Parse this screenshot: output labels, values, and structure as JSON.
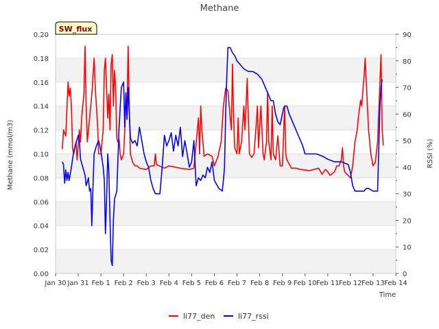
{
  "chart_data": {
    "type": "line",
    "title": "Methane",
    "site_label": "SW_flux",
    "xlabel": "Time",
    "ylabel": "Methane (mmol/m3)",
    "y2label": "RSSI (%)",
    "x_unit": "days since Jan 30",
    "xlim": [
      0,
      15
    ],
    "ylim": [
      0,
      0.2
    ],
    "y2lim": [
      0,
      90
    ],
    "x_ticks": [
      {
        "x": 0,
        "label": "Jan 30"
      },
      {
        "x": 1,
        "label": "Jan 31"
      },
      {
        "x": 2,
        "label": "Feb 1"
      },
      {
        "x": 3,
        "label": "Feb 2"
      },
      {
        "x": 4,
        "label": "Feb 3"
      },
      {
        "x": 5,
        "label": "Feb 4"
      },
      {
        "x": 6,
        "label": "Feb 5"
      },
      {
        "x": 7,
        "label": "Feb 6"
      },
      {
        "x": 8,
        "label": "Feb 7"
      },
      {
        "x": 9,
        "label": "Feb 8"
      },
      {
        "x": 10,
        "label": "Feb 9"
      },
      {
        "x": 11,
        "label": "Feb 10"
      },
      {
        "x": 12,
        "label": "Feb 11"
      },
      {
        "x": 13,
        "label": "Feb 12"
      },
      {
        "x": 14,
        "label": "Feb 13"
      },
      {
        "x": 15,
        "label": "Feb 14"
      }
    ],
    "y_ticks": [
      "0.00",
      "0.02",
      "0.04",
      "0.06",
      "0.08",
      "0.10",
      "0.12",
      "0.14",
      "0.16",
      "0.18",
      "0.20"
    ],
    "y2_ticks": [
      "0",
      "10",
      "20",
      "30",
      "40",
      "50",
      "60",
      "70",
      "80",
      "90"
    ],
    "legend": [
      "li77_den",
      "li77_rssi"
    ],
    "series": [
      {
        "name": "li77_den",
        "axis": "left",
        "color": "#ff0000",
        "points": [
          [
            0.3,
            0.104
          ],
          [
            0.35,
            0.12
          ],
          [
            0.45,
            0.115
          ],
          [
            0.55,
            0.16
          ],
          [
            0.6,
            0.148
          ],
          [
            0.65,
            0.155
          ],
          [
            0.7,
            0.14
          ],
          [
            0.75,
            0.105
          ],
          [
            0.8,
            0.1
          ],
          [
            0.9,
            0.11
          ],
          [
            0.95,
            0.095
          ],
          [
            1.05,
            0.12
          ],
          [
            1.1,
            0.11
          ],
          [
            1.15,
            0.13
          ],
          [
            1.25,
            0.15
          ],
          [
            1.3,
            0.19
          ],
          [
            1.35,
            0.14
          ],
          [
            1.4,
            0.11
          ],
          [
            1.5,
            0.13
          ],
          [
            1.6,
            0.15
          ],
          [
            1.7,
            0.18
          ],
          [
            1.75,
            0.155
          ],
          [
            1.85,
            0.125
          ],
          [
            1.9,
            0.1
          ],
          [
            2.0,
            0.1
          ],
          [
            2.1,
            0.12
          ],
          [
            2.15,
            0.17
          ],
          [
            2.2,
            0.18
          ],
          [
            2.25,
            0.155
          ],
          [
            2.3,
            0.13
          ],
          [
            2.35,
            0.15
          ],
          [
            2.4,
            0.12
          ],
          [
            2.45,
            0.175
          ],
          [
            2.5,
            0.183
          ],
          [
            2.55,
            0.14
          ],
          [
            2.6,
            0.17
          ],
          [
            2.65,
            0.155
          ],
          [
            2.7,
            0.113
          ],
          [
            2.75,
            0.11
          ],
          [
            2.8,
            0.112
          ],
          [
            2.85,
            0.1
          ],
          [
            2.9,
            0.095
          ],
          [
            3.0,
            0.1
          ],
          [
            3.05,
            0.12
          ],
          [
            3.1,
            0.145
          ],
          [
            3.15,
            0.137
          ],
          [
            3.2,
            0.19
          ],
          [
            3.25,
            0.14
          ],
          [
            3.3,
            0.1
          ],
          [
            3.4,
            0.093
          ],
          [
            3.5,
            0.09
          ],
          [
            3.6,
            0.09
          ],
          [
            3.7,
            0.088
          ],
          [
            4.0,
            0.087
          ],
          [
            4.2,
            0.09
          ],
          [
            4.35,
            0.09
          ],
          [
            4.4,
            0.1
          ],
          [
            4.45,
            0.091
          ],
          [
            4.8,
            0.088
          ],
          [
            5.0,
            0.09
          ],
          [
            5.5,
            0.088
          ],
          [
            5.9,
            0.087
          ],
          [
            6.1,
            0.088
          ],
          [
            6.3,
            0.13
          ],
          [
            6.35,
            0.1
          ],
          [
            6.4,
            0.14
          ],
          [
            6.45,
            0.12
          ],
          [
            6.55,
            0.098
          ],
          [
            6.7,
            0.1
          ],
          [
            6.9,
            0.098
          ],
          [
            7.0,
            0.09
          ],
          [
            7.15,
            0.097
          ],
          [
            7.3,
            0.11
          ],
          [
            7.4,
            0.14
          ],
          [
            7.5,
            0.155
          ],
          [
            7.6,
            0.153
          ],
          [
            7.7,
            0.13
          ],
          [
            7.75,
            0.12
          ],
          [
            7.8,
            0.175
          ],
          [
            7.85,
            0.13
          ],
          [
            7.9,
            0.105
          ],
          [
            8.0,
            0.1
          ],
          [
            8.05,
            0.13
          ],
          [
            8.1,
            0.1
          ],
          [
            8.2,
            0.11
          ],
          [
            8.3,
            0.14
          ],
          [
            8.35,
            0.12
          ],
          [
            8.45,
            0.163
          ],
          [
            8.5,
            0.13
          ],
          [
            8.55,
            0.1
          ],
          [
            8.65,
            0.097
          ],
          [
            8.75,
            0.1
          ],
          [
            8.85,
            0.125
          ],
          [
            8.9,
            0.14
          ],
          [
            8.95,
            0.105
          ],
          [
            9.05,
            0.14
          ],
          [
            9.15,
            0.1
          ],
          [
            9.2,
            0.095
          ],
          [
            9.3,
            0.11
          ],
          [
            9.35,
            0.152
          ],
          [
            9.4,
            0.11
          ],
          [
            9.5,
            0.095
          ],
          [
            9.55,
            0.14
          ],
          [
            9.6,
            0.1
          ],
          [
            9.7,
            0.095
          ],
          [
            9.8,
            0.115
          ],
          [
            9.9,
            0.09
          ],
          [
            10.0,
            0.09
          ],
          [
            10.1,
            0.14
          ],
          [
            10.15,
            0.1
          ],
          [
            10.2,
            0.095
          ],
          [
            10.4,
            0.088
          ],
          [
            10.6,
            0.088
          ],
          [
            10.8,
            0.087
          ],
          [
            11.2,
            0.086
          ],
          [
            11.4,
            0.087
          ],
          [
            11.6,
            0.088
          ],
          [
            11.75,
            0.083
          ],
          [
            11.9,
            0.087
          ],
          [
            12.0,
            0.085
          ],
          [
            12.1,
            0.082
          ],
          [
            12.3,
            0.085
          ],
          [
            12.4,
            0.09
          ],
          [
            12.5,
            0.09
          ],
          [
            12.6,
            0.095
          ],
          [
            12.65,
            0.105
          ],
          [
            12.7,
            0.09
          ],
          [
            12.75,
            0.085
          ],
          [
            12.9,
            0.082
          ],
          [
            13.0,
            0.08
          ],
          [
            13.1,
            0.09
          ],
          [
            13.2,
            0.11
          ],
          [
            13.3,
            0.12
          ],
          [
            13.35,
            0.13
          ],
          [
            13.45,
            0.145
          ],
          [
            13.5,
            0.14
          ],
          [
            13.6,
            0.165
          ],
          [
            13.65,
            0.18
          ],
          [
            13.7,
            0.16
          ],
          [
            13.8,
            0.12
          ],
          [
            13.9,
            0.1
          ],
          [
            14.0,
            0.09
          ],
          [
            14.1,
            0.093
          ],
          [
            14.2,
            0.11
          ],
          [
            14.3,
            0.16
          ],
          [
            14.35,
            0.183
          ],
          [
            14.4,
            0.12
          ],
          [
            14.45,
            0.107
          ]
        ]
      },
      {
        "name": "li77_rssi",
        "axis": "right",
        "color": "#0000ff",
        "points": [
          [
            0.3,
            42
          ],
          [
            0.35,
            41
          ],
          [
            0.4,
            34
          ],
          [
            0.45,
            39
          ],
          [
            0.5,
            35
          ],
          [
            0.55,
            38
          ],
          [
            0.6,
            35
          ],
          [
            0.7,
            40
          ],
          [
            0.8,
            46
          ],
          [
            0.9,
            49
          ],
          [
            1.0,
            52
          ],
          [
            1.05,
            50
          ],
          [
            1.1,
            43
          ],
          [
            1.2,
            40
          ],
          [
            1.3,
            37
          ],
          [
            1.35,
            33
          ],
          [
            1.45,
            36
          ],
          [
            1.5,
            31
          ],
          [
            1.55,
            32
          ],
          [
            1.6,
            18
          ],
          [
            1.65,
            33
          ],
          [
            1.7,
            45
          ],
          [
            1.8,
            48
          ],
          [
            1.9,
            50
          ],
          [
            2.0,
            46
          ],
          [
            2.1,
            40
          ],
          [
            2.15,
            35
          ],
          [
            2.2,
            15
          ],
          [
            2.25,
            28
          ],
          [
            2.3,
            45
          ],
          [
            2.35,
            38
          ],
          [
            2.4,
            20
          ],
          [
            2.45,
            5
          ],
          [
            2.5,
            3
          ],
          [
            2.55,
            20
          ],
          [
            2.6,
            28
          ],
          [
            2.7,
            31
          ],
          [
            2.8,
            55
          ],
          [
            2.9,
            70
          ],
          [
            3.0,
            72
          ],
          [
            3.05,
            55
          ],
          [
            3.1,
            68
          ],
          [
            3.15,
            58
          ],
          [
            3.2,
            70
          ],
          [
            3.3,
            51
          ],
          [
            3.4,
            49
          ],
          [
            3.5,
            50
          ],
          [
            3.6,
            48
          ],
          [
            3.7,
            55
          ],
          [
            3.8,
            50
          ],
          [
            3.9,
            45
          ],
          [
            4.0,
            42
          ],
          [
            4.1,
            40
          ],
          [
            4.2,
            35
          ],
          [
            4.3,
            32
          ],
          [
            4.4,
            30
          ],
          [
            4.6,
            30
          ],
          [
            4.7,
            40
          ],
          [
            4.8,
            52
          ],
          [
            4.9,
            48
          ],
          [
            5.0,
            50
          ],
          [
            5.1,
            53
          ],
          [
            5.2,
            46
          ],
          [
            5.3,
            52
          ],
          [
            5.4,
            48
          ],
          [
            5.5,
            55
          ],
          [
            5.6,
            44
          ],
          [
            5.7,
            50
          ],
          [
            5.8,
            45
          ],
          [
            5.9,
            40
          ],
          [
            6.0,
            42
          ],
          [
            6.1,
            50
          ],
          [
            6.2,
            33
          ],
          [
            6.3,
            36
          ],
          [
            6.4,
            35
          ],
          [
            6.5,
            37
          ],
          [
            6.6,
            36
          ],
          [
            6.7,
            40
          ],
          [
            6.8,
            38
          ],
          [
            6.9,
            42
          ],
          [
            7.0,
            35
          ],
          [
            7.2,
            32
          ],
          [
            7.35,
            31
          ],
          [
            7.4,
            35
          ],
          [
            7.45,
            40
          ],
          [
            7.5,
            60
          ],
          [
            7.55,
            75
          ],
          [
            7.6,
            85
          ],
          [
            7.7,
            85
          ],
          [
            7.8,
            83
          ],
          [
            7.9,
            82
          ],
          [
            8.0,
            80
          ],
          [
            8.1,
            79
          ],
          [
            8.2,
            78
          ],
          [
            8.3,
            77
          ],
          [
            8.5,
            76
          ],
          [
            8.7,
            76
          ],
          [
            8.9,
            75
          ],
          [
            9.1,
            73
          ],
          [
            9.2,
            71
          ],
          [
            9.3,
            69
          ],
          [
            9.4,
            67
          ],
          [
            9.5,
            65
          ],
          [
            9.6,
            65
          ],
          [
            9.7,
            60
          ],
          [
            9.8,
            57
          ],
          [
            9.9,
            56
          ],
          [
            10.0,
            60
          ],
          [
            10.05,
            62
          ],
          [
            10.1,
            63
          ],
          [
            10.2,
            63
          ],
          [
            10.3,
            60
          ],
          [
            10.4,
            58
          ],
          [
            10.5,
            56
          ],
          [
            10.6,
            54
          ],
          [
            10.7,
            52
          ],
          [
            10.8,
            50
          ],
          [
            10.9,
            48
          ],
          [
            11.0,
            45
          ],
          [
            11.2,
            45
          ],
          [
            11.5,
            45
          ],
          [
            11.8,
            44
          ],
          [
            12.0,
            43
          ],
          [
            12.3,
            42
          ],
          [
            12.6,
            42
          ],
          [
            12.9,
            41
          ],
          [
            13.0,
            38
          ],
          [
            13.1,
            33
          ],
          [
            13.2,
            31
          ],
          [
            13.3,
            31
          ],
          [
            13.5,
            31
          ],
          [
            13.6,
            31
          ],
          [
            13.7,
            32
          ],
          [
            13.8,
            32
          ],
          [
            14.0,
            31
          ],
          [
            14.2,
            31
          ],
          [
            14.3,
            63
          ],
          [
            14.35,
            70
          ],
          [
            14.4,
            73
          ]
        ]
      }
    ]
  }
}
